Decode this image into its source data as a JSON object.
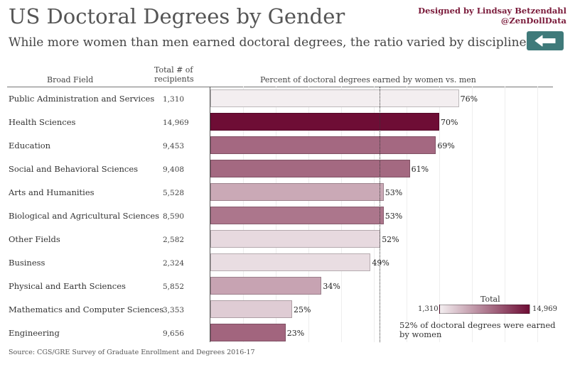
{
  "header": {
    "title": "US Doctoral Degrees by Gender",
    "subtitle": "While more women than men earned doctoral degrees, the ratio varied by discipline.",
    "credit_line1": "Designed by Lindsay Betzendahl",
    "credit_line2": "@ZenDollData"
  },
  "columns": {
    "field": "Broad Field",
    "total_line1": "Total # of",
    "total_line2": "recipients",
    "percent": "Percent of doctoral degrees earned by women vs. men"
  },
  "reference": {
    "value": 52,
    "note": "52% of doctoral degrees were earned by women"
  },
  "legend": {
    "title": "Total",
    "min_label": "1,310",
    "max_label": "14,969",
    "min_color": "#f3eef0",
    "max_color": "#6e0d35"
  },
  "source": "Source: CGS/GRE Survey of Graduate Enrollment and Degrees 2016-17",
  "chart_data": {
    "type": "bar",
    "orientation": "horizontal",
    "title": "Percent of doctoral degrees earned by women vs. men",
    "xlabel": "Percent of doctoral degrees earned by women vs. men",
    "ylabel": "Broad Field",
    "xlim": [
      0,
      100
    ],
    "gridlines": [
      10,
      20,
      30,
      40,
      50,
      60,
      70,
      80,
      90,
      100
    ],
    "reference_line": 52,
    "categories": [
      "Public Administration and Services",
      "Health Sciences",
      "Education",
      "Social and Behavioral Sciences",
      "Arts and Humanities",
      "Biological and Agricultural Sciences",
      "Other Fields",
      "Business",
      "Physical and Earth Sciences",
      "Mathematics and Computer Sciences",
      "Engineering"
    ],
    "values": [
      76,
      70,
      69,
      61,
      53,
      53,
      52,
      49,
      34,
      25,
      23
    ],
    "value_labels": [
      "76%",
      "70%",
      "69%",
      "61%",
      "53%",
      "53%",
      "52%",
      "49%",
      "34%",
      "25%",
      "23%"
    ],
    "totals": [
      1310,
      14969,
      9453,
      9408,
      5528,
      8590,
      2582,
      2324,
      5852,
      3353,
      9656
    ],
    "total_labels": [
      "1,310",
      "14,969",
      "9,453",
      "9,408",
      "5,528",
      "8,590",
      "2,582",
      "2,324",
      "5,852",
      "3,353",
      "9,656"
    ],
    "color_encoding": "Total",
    "color_range": [
      1310,
      14969
    ]
  }
}
